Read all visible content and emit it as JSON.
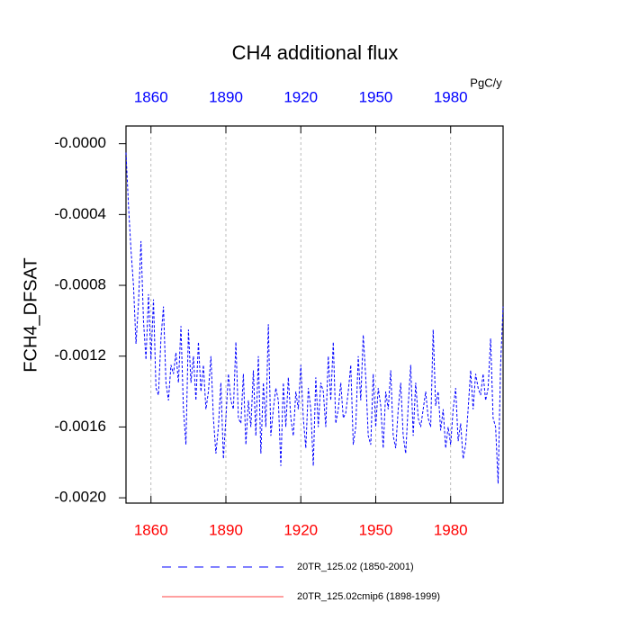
{
  "chart_data": {
    "type": "line",
    "title": "CH4 additional flux",
    "units": "PgC/y",
    "y_label": "FCH4_DFSAT",
    "xlim": [
      1850,
      2001
    ],
    "xticks": [
      1860,
      1890,
      1920,
      1950,
      1980
    ],
    "ylim": [
      -0.00203,
      0.0001
    ],
    "yticks": [
      {
        "value": 0,
        "label": "-0.0000"
      },
      -0.0004,
      -0.0008,
      -0.0012,
      -0.0016,
      {
        "value": -0.002,
        "label": "-0.0020"
      }
    ],
    "grid": true,
    "top_axis_color": "#0000ff",
    "bottom_axis_color": "#ff0000",
    "series": [
      {
        "name": "20TR_125.02 (1850-2001)",
        "color": "#0000ff",
        "dash": true,
        "x": [
          1850,
          1851,
          1852,
          1853,
          1854,
          1855,
          1856,
          1857,
          1858,
          1859,
          1860,
          1861,
          1862,
          1863,
          1864,
          1865,
          1866,
          1867,
          1868,
          1869,
          1870,
          1871,
          1872,
          1873,
          1874,
          1875,
          1876,
          1877,
          1878,
          1879,
          1880,
          1881,
          1882,
          1883,
          1884,
          1885,
          1886,
          1887,
          1888,
          1889,
          1890,
          1891,
          1892,
          1893,
          1894,
          1895,
          1896,
          1897,
          1898,
          1899,
          1900,
          1901,
          1902,
          1903,
          1904,
          1905,
          1906,
          1907,
          1908,
          1909,
          1910,
          1911,
          1912,
          1913,
          1914,
          1915,
          1916,
          1917,
          1918,
          1919,
          1920,
          1921,
          1922,
          1923,
          1924,
          1925,
          1926,
          1927,
          1928,
          1929,
          1930,
          1931,
          1932,
          1933,
          1934,
          1935,
          1936,
          1937,
          1938,
          1939,
          1940,
          1941,
          1942,
          1943,
          1944,
          1945,
          1946,
          1947,
          1948,
          1949,
          1950,
          1951,
          1952,
          1953,
          1954,
          1955,
          1956,
          1957,
          1958,
          1959,
          1960,
          1961,
          1962,
          1963,
          1964,
          1965,
          1966,
          1967,
          1968,
          1969,
          1970,
          1971,
          1972,
          1973,
          1974,
          1975,
          1976,
          1977,
          1978,
          1979,
          1980,
          1981,
          1982,
          1983,
          1984,
          1985,
          1986,
          1987,
          1988,
          1989,
          1990,
          1991,
          1992,
          1993,
          1994,
          1995,
          1996,
          1997,
          1998,
          1999,
          2000,
          2001
        ],
        "values": [
          -5e-05,
          -0.00035,
          -0.0006,
          -0.0008,
          -0.00113,
          -0.0009,
          -0.00055,
          -0.001,
          -0.00122,
          -0.00085,
          -0.00122,
          -0.00088,
          -0.00138,
          -0.00142,
          -0.0011,
          -0.00092,
          -0.00135,
          -0.00145,
          -0.00125,
          -0.0013,
          -0.00118,
          -0.00135,
          -0.00103,
          -0.0015,
          -0.0017,
          -0.00105,
          -0.00135,
          -0.0012,
          -0.00145,
          -0.00112,
          -0.0014,
          -0.00125,
          -0.0015,
          -0.0014,
          -0.0012,
          -0.00155,
          -0.00175,
          -0.0016,
          -0.00135,
          -0.00178,
          -0.00155,
          -0.0013,
          -0.00145,
          -0.0015,
          -0.00112,
          -0.00155,
          -0.00158,
          -0.0013,
          -0.0017,
          -0.00145,
          -0.0016,
          -0.00128,
          -0.00165,
          -0.0012,
          -0.00175,
          -0.00135,
          -0.0016,
          -0.00102,
          -0.00165,
          -0.0015,
          -0.00138,
          -0.00145,
          -0.00182,
          -0.00135,
          -0.0016,
          -0.00132,
          -0.00155,
          -0.00165,
          -0.0014,
          -0.0015,
          -0.00125,
          -0.00155,
          -0.00172,
          -0.00138,
          -0.0015,
          -0.00182,
          -0.00132,
          -0.0016,
          -0.00135,
          -0.0014,
          -0.0016,
          -0.0012,
          -0.00145,
          -0.00112,
          -0.00158,
          -0.0015,
          -0.00135,
          -0.00155,
          -0.00152,
          -0.0014,
          -0.00125,
          -0.0017,
          -0.0016,
          -0.0012,
          -0.00145,
          -0.00108,
          -0.00132,
          -0.00165,
          -0.0017,
          -0.0013,
          -0.0016,
          -0.00138,
          -0.00148,
          -0.00172,
          -0.0014,
          -0.0015,
          -0.00128,
          -0.00165,
          -0.00172,
          -0.0015,
          -0.00135,
          -0.00165,
          -0.00175,
          -0.00148,
          -0.00125,
          -0.00165,
          -0.00135,
          -0.00155,
          -0.0016,
          -0.0015,
          -0.0014,
          -0.00155,
          -0.0016,
          -0.00105,
          -0.00148,
          -0.0014,
          -0.00162,
          -0.0015,
          -0.00172,
          -0.0016,
          -0.0017,
          -0.0015,
          -0.00138,
          -0.00168,
          -0.00158,
          -0.00178,
          -0.0017,
          -0.0015,
          -0.00128,
          -0.0015,
          -0.0013,
          -0.00138,
          -0.00142,
          -0.0013,
          -0.00145,
          -0.00138,
          -0.0011,
          -0.00155,
          -0.0016,
          -0.00192,
          -0.00125,
          -0.00092
        ]
      },
      {
        "name": "20TR_125.02cmip6 (1898-1999)",
        "color": "#ff0000",
        "dash": false,
        "x": [],
        "values": []
      }
    ]
  }
}
